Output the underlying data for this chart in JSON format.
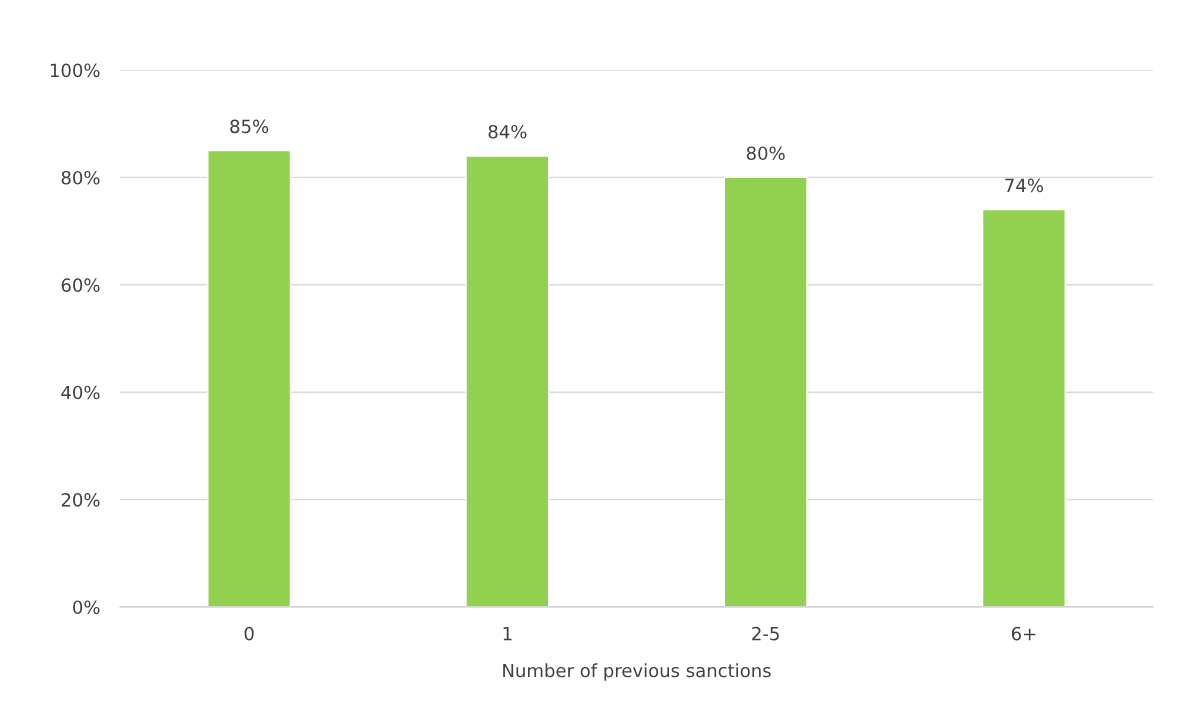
{
  "chart_data": {
    "type": "bar",
    "xlabel": "Number of previous sanctions",
    "categories": [
      "0",
      "1",
      "2-5",
      "6+"
    ],
    "values": [
      85,
      84,
      80,
      74
    ],
    "color": "#92d050",
    "value_labels": [
      "85%",
      "84%",
      "80%",
      "74%"
    ],
    "ylim": [
      0,
      100
    ],
    "yticks": [
      {
        "value": 0,
        "label": "0%"
      },
      {
        "value": 20,
        "label": "20%"
      },
      {
        "value": 40,
        "label": "40%"
      },
      {
        "value": 60,
        "label": "60%"
      },
      {
        "value": 80,
        "label": "80%"
      },
      {
        "value": 100,
        "label": "100%"
      }
    ],
    "grid": "y",
    "legend": false
  }
}
